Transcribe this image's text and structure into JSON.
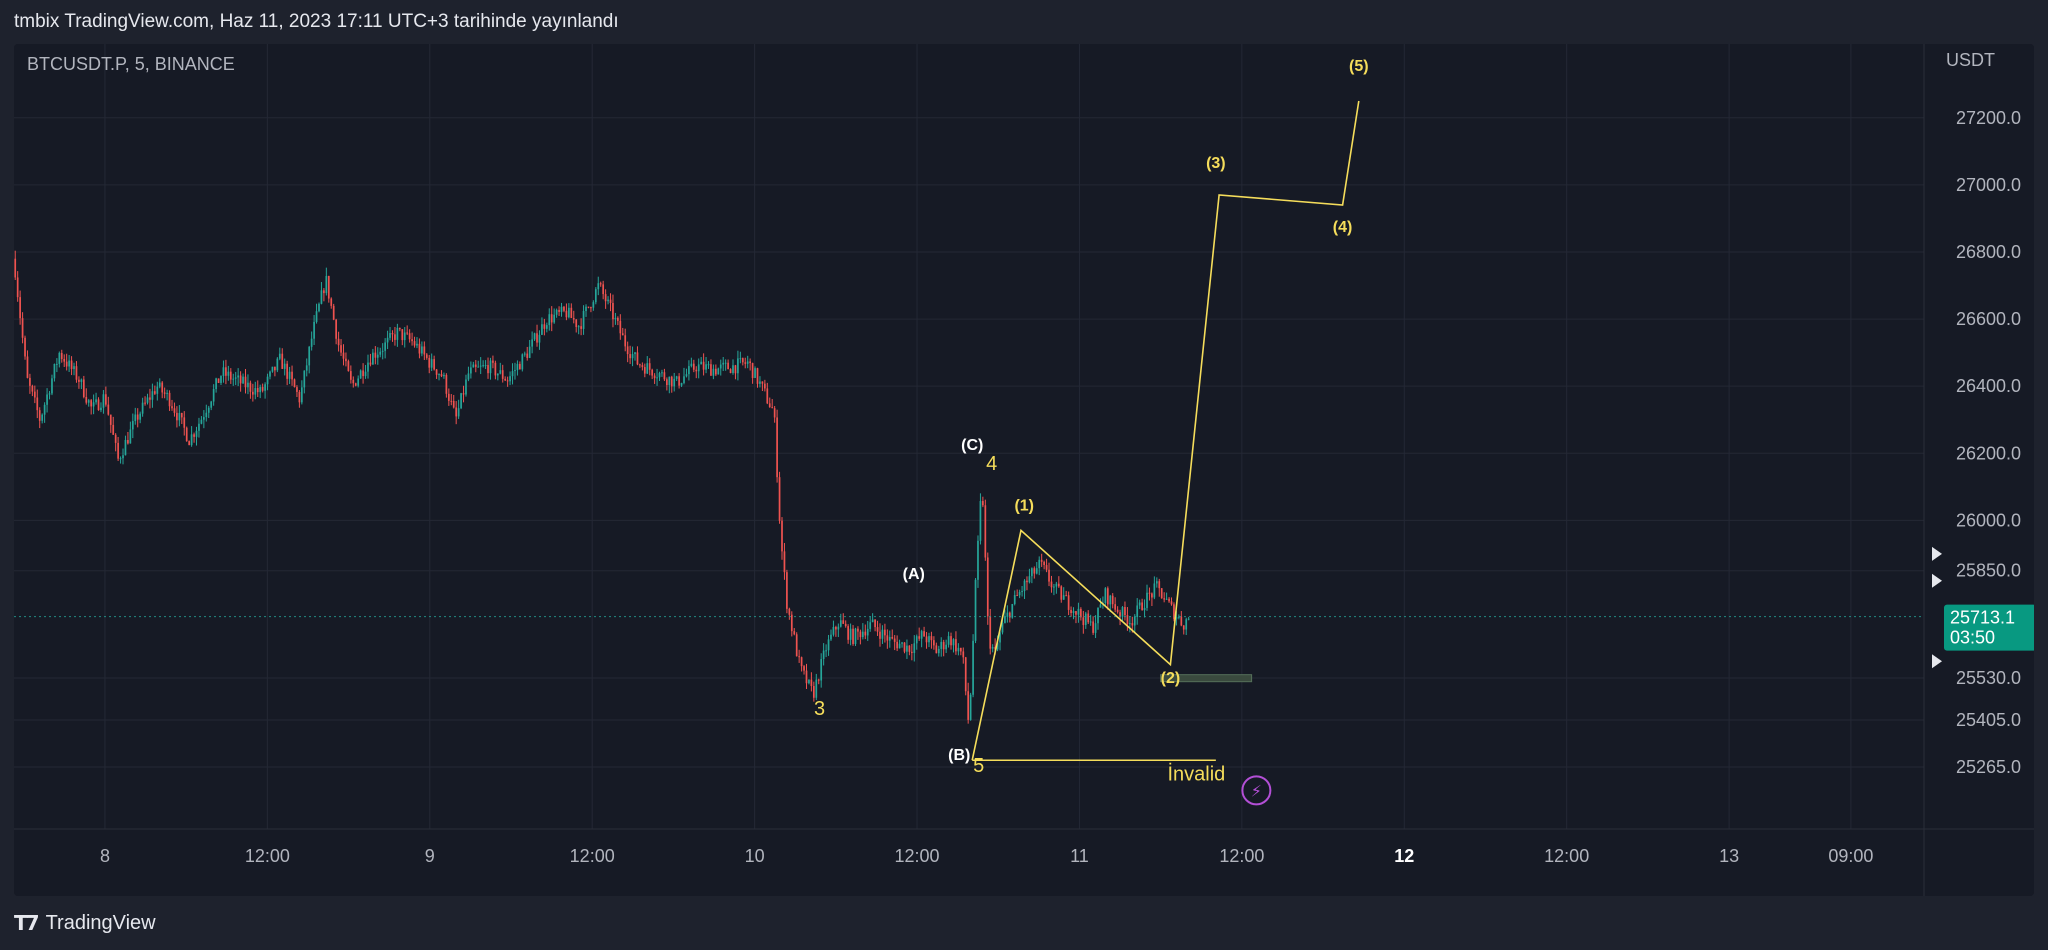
{
  "header": {
    "attribution": "tmbix TradingView.com, Haz 11, 2023 17:11 UTC+3 tarihinde yayınlandı"
  },
  "symbol_label": "BTCUSDT.P, 5, BINANCE",
  "footer": {
    "brand": "TradingView",
    "logo_icon": "tradingview-logo-icon"
  },
  "colors": {
    "bg": "#161a25",
    "grid": "#242835",
    "up": "#26a69a",
    "down": "#ef5350",
    "projection": "#f5dd5b",
    "label_white": "#ffffff",
    "price_tag": "#089981",
    "target_box": "#3a4a3e",
    "invalid_icon": "#b34fd6"
  },
  "chart_data": {
    "type": "candlestick",
    "title": "",
    "ylabel": "USDT",
    "ylim": [
      25080,
      27420
    ],
    "price_ticks": [
      27200.0,
      27000.0,
      26800.0,
      26600.0,
      26400.0,
      26200.0,
      26000.0,
      25850.0,
      25530.0,
      25405.0,
      25265.0
    ],
    "time_ticks": [
      {
        "label": "8",
        "t": 8.0,
        "bold": false
      },
      {
        "label": "12:00",
        "t": 8.5,
        "bold": false
      },
      {
        "label": "9",
        "t": 9.0,
        "bold": false
      },
      {
        "label": "12:00",
        "t": 9.5,
        "bold": false
      },
      {
        "label": "10",
        "t": 10.0,
        "bold": false
      },
      {
        "label": "12:00",
        "t": 10.5,
        "bold": false
      },
      {
        "label": "11",
        "t": 11.0,
        "bold": false
      },
      {
        "label": "12:00",
        "t": 11.5,
        "bold": false
      },
      {
        "label": "12",
        "t": 12.0,
        "bold": true
      },
      {
        "label": "12:00",
        "t": 12.5,
        "bold": false
      },
      {
        "label": "13",
        "t": 13.0,
        "bold": false
      },
      {
        "label": "09:00",
        "t": 13.375,
        "bold": false
      }
    ],
    "xlim": [
      7.72,
      13.6
    ],
    "last_price": {
      "value": "25713.1",
      "countdown": "03:50",
      "price": 25713.1
    },
    "price_path": [
      [
        7.72,
        26780
      ],
      [
        7.76,
        26420
      ],
      [
        7.8,
        26300
      ],
      [
        7.86,
        26500
      ],
      [
        7.92,
        26420
      ],
      [
        7.96,
        26330
      ],
      [
        8.0,
        26370
      ],
      [
        8.04,
        26180
      ],
      [
        8.1,
        26310
      ],
      [
        8.16,
        26400
      ],
      [
        8.2,
        26360
      ],
      [
        8.26,
        26240
      ],
      [
        8.3,
        26310
      ],
      [
        8.36,
        26440
      ],
      [
        8.42,
        26410
      ],
      [
        8.48,
        26380
      ],
      [
        8.54,
        26480
      ],
      [
        8.6,
        26360
      ],
      [
        8.64,
        26560
      ],
      [
        8.68,
        26720
      ],
      [
        8.72,
        26520
      ],
      [
        8.76,
        26400
      ],
      [
        8.82,
        26490
      ],
      [
        8.86,
        26520
      ],
      [
        8.9,
        26560
      ],
      [
        8.95,
        26530
      ],
      [
        9.0,
        26470
      ],
      [
        9.04,
        26430
      ],
      [
        9.08,
        26300
      ],
      [
        9.12,
        26440
      ],
      [
        9.18,
        26460
      ],
      [
        9.24,
        26420
      ],
      [
        9.3,
        26500
      ],
      [
        9.36,
        26600
      ],
      [
        9.42,
        26620
      ],
      [
        9.46,
        26580
      ],
      [
        9.52,
        26700
      ],
      [
        9.56,
        26620
      ],
      [
        9.6,
        26530
      ],
      [
        9.64,
        26470
      ],
      [
        9.7,
        26440
      ],
      [
        9.76,
        26410
      ],
      [
        9.82,
        26460
      ],
      [
        9.88,
        26450
      ],
      [
        9.94,
        26460
      ],
      [
        9.98,
        26470
      ],
      [
        10.02,
        26400
      ],
      [
        10.06,
        26320
      ],
      [
        10.08,
        25950
      ],
      [
        10.1,
        25750
      ],
      [
        10.14,
        25560
      ],
      [
        10.18,
        25480
      ],
      [
        10.22,
        25620
      ],
      [
        10.26,
        25700
      ],
      [
        10.3,
        25650
      ],
      [
        10.36,
        25690
      ],
      [
        10.42,
        25640
      ],
      [
        10.48,
        25620
      ],
      [
        10.52,
        25660
      ],
      [
        10.56,
        25610
      ],
      [
        10.6,
        25650
      ],
      [
        10.64,
        25600
      ],
      [
        10.66,
        25380
      ],
      [
        10.68,
        25800
      ],
      [
        10.7,
        26120
      ],
      [
        10.72,
        25650
      ],
      [
        10.74,
        25600
      ],
      [
        10.76,
        25680
      ],
      [
        10.8,
        25760
      ],
      [
        10.84,
        25820
      ],
      [
        10.88,
        25870
      ],
      [
        10.92,
        25800
      ],
      [
        10.96,
        25760
      ],
      [
        11.0,
        25720
      ],
      [
        11.04,
        25680
      ],
      [
        11.08,
        25780
      ],
      [
        11.12,
        25730
      ],
      [
        11.16,
        25700
      ],
      [
        11.2,
        25760
      ],
      [
        11.24,
        25800
      ],
      [
        11.28,
        25740
      ],
      [
        11.32,
        25690
      ],
      [
        11.34,
        25715
      ]
    ],
    "projection_path": [
      [
        10.67,
        25285
      ],
      [
        10.82,
        25970
      ],
      [
        11.28,
        25570
      ],
      [
        11.43,
        26970
      ],
      [
        11.81,
        26940
      ],
      [
        11.86,
        27250
      ]
    ],
    "wave_labels": [
      {
        "text": "(C)",
        "t": 10.67,
        "p": 26210,
        "color": "white"
      },
      {
        "text": "4",
        "t": 10.73,
        "p": 26150,
        "color": "yellow"
      },
      {
        "text": "(A)",
        "t": 10.49,
        "p": 25825,
        "color": "white"
      },
      {
        "text": "3",
        "t": 10.2,
        "p": 25420,
        "color": "yellow"
      },
      {
        "text": "(B)",
        "t": 10.63,
        "p": 25285,
        "color": "white"
      },
      {
        "text": "5",
        "t": 10.69,
        "p": 25250,
        "color": "yellow"
      },
      {
        "text": "(1)",
        "t": 10.83,
        "p": 26030,
        "color": "yellow"
      },
      {
        "text": "(2)",
        "t": 11.28,
        "p": 25515,
        "color": "yellow"
      },
      {
        "text": "(3)",
        "t": 11.42,
        "p": 27050,
        "color": "yellow"
      },
      {
        "text": "(4)",
        "t": 11.81,
        "p": 26860,
        "color": "yellow"
      },
      {
        "text": "(5)",
        "t": 11.86,
        "p": 27340,
        "color": "yellow"
      }
    ],
    "invalidation_line": {
      "t_start": 10.67,
      "t_end": 11.42,
      "price": 25285
    },
    "invalid_label": {
      "text": "İnvalid",
      "t": 11.36,
      "p": 25225
    },
    "target_zone": {
      "t_start": 11.25,
      "t_end": 11.53,
      "p_top": 25540,
      "p_bottom": 25525
    }
  }
}
